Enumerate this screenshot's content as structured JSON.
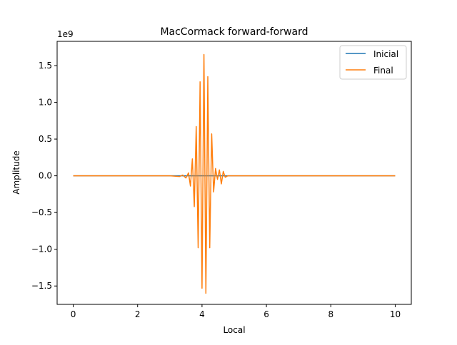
{
  "chart_data": {
    "type": "line",
    "title": "MacCormack forward-forward",
    "xlabel": "Local",
    "ylabel": "Amplitude",
    "y_offset_label": "1e9",
    "xlim": [
      -0.5,
      10.5
    ],
    "ylim": [
      -1.75,
      1.83
    ],
    "y_scale_exponent": 9,
    "x_ticks": [
      0,
      2,
      4,
      6,
      8,
      10
    ],
    "x_tick_labels": [
      "0",
      "2",
      "4",
      "6",
      "8",
      "10"
    ],
    "y_ticks": [
      -1.5,
      -1.0,
      -0.5,
      0.0,
      0.5,
      1.0,
      1.5
    ],
    "y_tick_labels": [
      "−1.5",
      "−1.0",
      "−0.5",
      "0.0",
      "0.5",
      "1.0",
      "1.5"
    ],
    "grid": false,
    "legend_position": "top-right",
    "series": [
      {
        "name": "Inicial",
        "color": "#1f77b4",
        "x": [
          0,
          10
        ],
        "y": [
          0,
          0
        ]
      },
      {
        "name": "Final",
        "color": "#ff7f0e",
        "x": [
          0,
          3.0,
          3.3,
          3.4,
          3.5,
          3.58,
          3.64,
          3.7,
          3.76,
          3.82,
          3.88,
          3.94,
          4.0,
          4.06,
          4.12,
          4.18,
          4.24,
          4.3,
          4.36,
          4.42,
          4.48,
          4.54,
          4.6,
          4.66,
          4.72,
          4.8,
          10
        ],
        "y": [
          0,
          0,
          -0.01,
          0.01,
          -0.03,
          0.04,
          -0.14,
          0.23,
          -0.42,
          0.67,
          -0.98,
          1.28,
          -1.53,
          1.65,
          -1.6,
          1.35,
          -0.98,
          0.57,
          -0.22,
          0.1,
          -0.05,
          0.08,
          -0.11,
          0.06,
          -0.02,
          0.0,
          0
        ]
      }
    ]
  }
}
